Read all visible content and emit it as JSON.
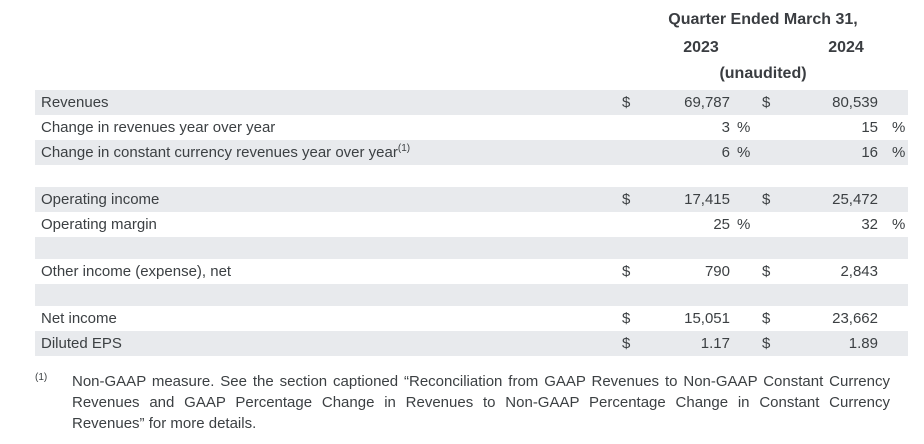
{
  "table": {
    "header": {
      "period_label": "Quarter Ended March 31,",
      "col_2023": "2023",
      "col_2024": "2024",
      "unaudited": "(unaudited)"
    },
    "rows": [
      {
        "label": "Revenues",
        "d1": "$",
        "v1": "69,787",
        "p1": "",
        "d2": "$",
        "v2": "80,539",
        "p2": ""
      },
      {
        "label": "Change in revenues year over year",
        "d1": "",
        "v1": "3",
        "p1": "%",
        "d2": "",
        "v2": "15",
        "p2": "%"
      },
      {
        "label": "Change in constant currency revenues year over year",
        "sup": "(1)",
        "d1": "",
        "v1": "6",
        "p1": "%",
        "d2": "",
        "v2": "16",
        "p2": "%"
      },
      {
        "label": "Operating income",
        "d1": "$",
        "v1": "17,415",
        "p1": "",
        "d2": "$",
        "v2": "25,472",
        "p2": ""
      },
      {
        "label": "Operating margin",
        "d1": "",
        "v1": "25",
        "p1": "%",
        "d2": "",
        "v2": "32",
        "p2": "%"
      },
      {
        "label": "Other income (expense), net",
        "d1": "$",
        "v1": "790",
        "p1": "",
        "d2": "$",
        "v2": "2,843",
        "p2": ""
      },
      {
        "label": "Net income",
        "d1": "$",
        "v1": "15,051",
        "p1": "",
        "d2": "$",
        "v2": "23,662",
        "p2": ""
      },
      {
        "label": "Diluted EPS",
        "d1": "$",
        "v1": "1.17",
        "p1": "",
        "d2": "$",
        "v2": "1.89",
        "p2": ""
      }
    ]
  },
  "footnote": {
    "marker": "(1)",
    "lines": [
      "Non-GAAP measure. See the section captioned “Reconciliation from GAAP Revenues to Non-GAAP Constant Currency",
      "Revenues and GAAP Percentage Change in Revenues to Non-GAAP Percentage Change in Constant Currency",
      "Revenues” for more details."
    ]
  },
  "colors": {
    "shaded_row_background": "#e8eaed",
    "text": "#3c4043"
  }
}
